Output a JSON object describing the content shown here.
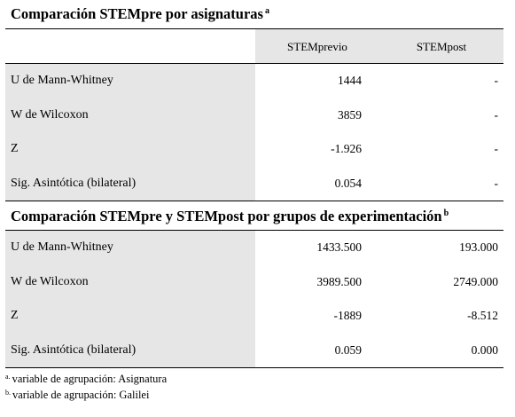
{
  "table1": {
    "title": "Comparación STEMpre por asignaturas",
    "title_mark": "a",
    "headers": [
      "STEMprevio",
      "STEMpost"
    ],
    "rows": [
      {
        "label": "U de Mann-Whitney",
        "v1": "1444",
        "v2": "-"
      },
      {
        "label": "W de Wilcoxon",
        "v1": "3859",
        "v2": "-"
      },
      {
        "label": "Z",
        "v1": "-1.926",
        "v2": "-"
      },
      {
        "label": "Sig. Asintótica (bilateral)",
        "v1": "0.054",
        "v2": "-"
      }
    ]
  },
  "table2": {
    "title": "Comparación STEMpre y STEMpost por grupos de experimentación",
    "title_mark": "b",
    "rows": [
      {
        "label": "U de Mann-Whitney",
        "v1": "1433.500",
        "v2": "193.000"
      },
      {
        "label": "W de Wilcoxon",
        "v1": "3989.500",
        "v2": "2749.000"
      },
      {
        "label": "Z",
        "v1": "-1889",
        "v2": "-8.512"
      },
      {
        "label": "Sig. Asintótica (bilateral)",
        "v1": "0.059",
        "v2": "0.000"
      }
    ]
  },
  "footnotes": [
    {
      "mark": "a.",
      "text": "variable de agrupación: Asignatura"
    },
    {
      "mark": "b.",
      "text": "variable de agrupación: Galilei"
    }
  ]
}
